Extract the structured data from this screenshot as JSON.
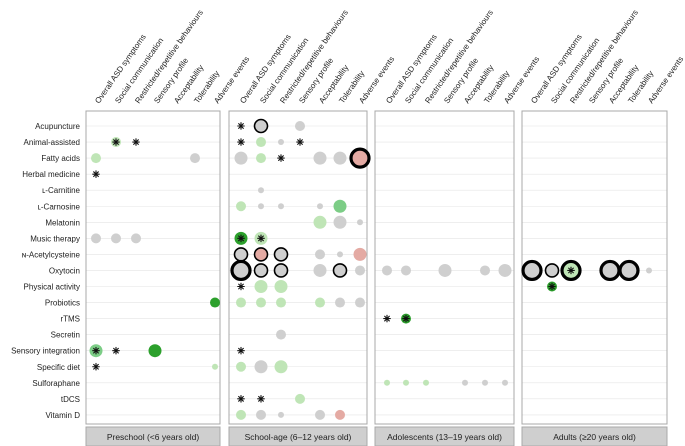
{
  "chart_data": {
    "type": "dot-matrix",
    "rows": [
      "Acupuncture",
      "Animal-assisted",
      "Fatty acids",
      "Herbal medicine",
      "ʟ-Carnitine",
      "ʟ-Carnosine",
      "Melatonin",
      "Music therapy",
      "ɴ-Acetylcysteine",
      "Oxytocin",
      "Physical activity",
      "Probiotics",
      "rTMS",
      "Secretin",
      "Sensory integration",
      "Specific diet",
      "Sulforaphane",
      "tDCS",
      "Vitamin D"
    ],
    "columns": [
      "Overall ASD symptoms",
      "Social communication",
      "Restricted/repetitive behaviours",
      "Sensory profile",
      "Acceptability",
      "Tolerability",
      "Adverse events"
    ],
    "panels": [
      {
        "title": "Preschool (<6 years old)",
        "dots": [
          {
            "row": 1,
            "col": 1,
            "size": 2,
            "color": "lightgreen",
            "star": true
          },
          {
            "row": 1,
            "col": 2,
            "size": 1,
            "color": "none",
            "star": true
          },
          {
            "row": 2,
            "col": 0,
            "size": 2,
            "color": "lightgreen"
          },
          {
            "row": 2,
            "col": 5,
            "size": 2,
            "color": "grey"
          },
          {
            "row": 3,
            "col": 0,
            "size": 1,
            "color": "none",
            "star": true
          },
          {
            "row": 7,
            "col": 0,
            "size": 2,
            "color": "grey"
          },
          {
            "row": 7,
            "col": 1,
            "size": 2,
            "color": "grey"
          },
          {
            "row": 7,
            "col": 2,
            "size": 2,
            "color": "grey"
          },
          {
            "row": 11,
            "col": 6,
            "size": 2,
            "color": "green"
          },
          {
            "row": 14,
            "col": 0,
            "size": 3,
            "color": "midgreen",
            "star": true
          },
          {
            "row": 14,
            "col": 1,
            "size": 1,
            "color": "none",
            "star": true
          },
          {
            "row": 14,
            "col": 3,
            "size": 3,
            "color": "green"
          },
          {
            "row": 15,
            "col": 0,
            "size": 1,
            "color": "none",
            "star": true
          },
          {
            "row": 15,
            "col": 6,
            "size": 1,
            "color": "lightgreen"
          }
        ]
      },
      {
        "title": "School-age (6–12 years old)",
        "dots": [
          {
            "row": 0,
            "col": 0,
            "size": 1,
            "color": "none",
            "star": true
          },
          {
            "row": 0,
            "col": 1,
            "size": 3,
            "color": "grey",
            "ring": true
          },
          {
            "row": 0,
            "col": 3,
            "size": 2,
            "color": "grey"
          },
          {
            "row": 1,
            "col": 0,
            "size": 1,
            "color": "none",
            "star": true
          },
          {
            "row": 1,
            "col": 1,
            "size": 2,
            "color": "lightgreen"
          },
          {
            "row": 1,
            "col": 2,
            "size": 1,
            "color": "grey"
          },
          {
            "row": 1,
            "col": 3,
            "size": 1,
            "color": "none",
            "star": true
          },
          {
            "row": 2,
            "col": 0,
            "size": 3,
            "color": "grey"
          },
          {
            "row": 2,
            "col": 1,
            "size": 2,
            "color": "lightgreen"
          },
          {
            "row": 2,
            "col": 2,
            "size": 1,
            "color": "none",
            "star": true
          },
          {
            "row": 2,
            "col": 4,
            "size": 3,
            "color": "grey"
          },
          {
            "row": 2,
            "col": 5,
            "size": 3,
            "color": "grey"
          },
          {
            "row": 2,
            "col": 6,
            "size": 4,
            "color": "pink",
            "ring": true
          },
          {
            "row": 4,
            "col": 1,
            "size": 1,
            "color": "grey"
          },
          {
            "row": 5,
            "col": 0,
            "size": 2,
            "color": "lightgreen"
          },
          {
            "row": 5,
            "col": 1,
            "size": 1,
            "color": "grey"
          },
          {
            "row": 5,
            "col": 2,
            "size": 1,
            "color": "grey"
          },
          {
            "row": 5,
            "col": 4,
            "size": 1,
            "color": "grey"
          },
          {
            "row": 5,
            "col": 5,
            "size": 3,
            "color": "midgreen"
          },
          {
            "row": 6,
            "col": 4,
            "size": 3,
            "color": "lightgreen"
          },
          {
            "row": 6,
            "col": 5,
            "size": 3,
            "color": "grey"
          },
          {
            "row": 6,
            "col": 6,
            "size": 1,
            "color": "grey"
          },
          {
            "row": 7,
            "col": 0,
            "size": 3,
            "color": "green",
            "star": true
          },
          {
            "row": 7,
            "col": 1,
            "size": 3,
            "color": "lightgreen",
            "star": true
          },
          {
            "row": 8,
            "col": 0,
            "size": 3,
            "color": "grey",
            "ring": true
          },
          {
            "row": 8,
            "col": 1,
            "size": 3,
            "color": "pink",
            "ring": true
          },
          {
            "row": 8,
            "col": 2,
            "size": 3,
            "color": "grey",
            "ring": true
          },
          {
            "row": 8,
            "col": 4,
            "size": 2,
            "color": "grey"
          },
          {
            "row": 8,
            "col": 5,
            "size": 1,
            "color": "grey"
          },
          {
            "row": 8,
            "col": 6,
            "size": 3,
            "color": "pink"
          },
          {
            "row": 9,
            "col": 0,
            "size": 4,
            "color": "grey",
            "ring": true
          },
          {
            "row": 9,
            "col": 1,
            "size": 3,
            "color": "grey",
            "ring": true
          },
          {
            "row": 9,
            "col": 2,
            "size": 3,
            "color": "grey",
            "ring": true
          },
          {
            "row": 9,
            "col": 4,
            "size": 3,
            "color": "grey"
          },
          {
            "row": 9,
            "col": 5,
            "size": 3,
            "color": "grey",
            "ring": true
          },
          {
            "row": 9,
            "col": 6,
            "size": 2,
            "color": "grey"
          },
          {
            "row": 10,
            "col": 0,
            "size": 1,
            "color": "none",
            "star": true
          },
          {
            "row": 10,
            "col": 1,
            "size": 3,
            "color": "lightgreen"
          },
          {
            "row": 10,
            "col": 2,
            "size": 3,
            "color": "lightgreen"
          },
          {
            "row": 11,
            "col": 0,
            "size": 2,
            "color": "lightgreen"
          },
          {
            "row": 11,
            "col": 1,
            "size": 2,
            "color": "lightgreen"
          },
          {
            "row": 11,
            "col": 2,
            "size": 2,
            "color": "lightgreen"
          },
          {
            "row": 11,
            "col": 4,
            "size": 2,
            "color": "lightgreen"
          },
          {
            "row": 11,
            "col": 5,
            "size": 2,
            "color": "grey"
          },
          {
            "row": 11,
            "col": 6,
            "size": 2,
            "color": "grey"
          },
          {
            "row": 13,
            "col": 2,
            "size": 2,
            "color": "grey"
          },
          {
            "row": 14,
            "col": 0,
            "size": 1,
            "color": "none",
            "star": true
          },
          {
            "row": 15,
            "col": 0,
            "size": 2,
            "color": "lightgreen"
          },
          {
            "row": 15,
            "col": 1,
            "size": 3,
            "color": "grey"
          },
          {
            "row": 15,
            "col": 2,
            "size": 3,
            "color": "lightgreen"
          },
          {
            "row": 17,
            "col": 0,
            "size": 1,
            "color": "none",
            "star": true
          },
          {
            "row": 17,
            "col": 1,
            "size": 1,
            "color": "none",
            "star": true
          },
          {
            "row": 17,
            "col": 3,
            "size": 2,
            "color": "lightgreen"
          },
          {
            "row": 18,
            "col": 0,
            "size": 2,
            "color": "lightgreen"
          },
          {
            "row": 18,
            "col": 1,
            "size": 2,
            "color": "grey"
          },
          {
            "row": 18,
            "col": 2,
            "size": 1,
            "color": "grey"
          },
          {
            "row": 18,
            "col": 4,
            "size": 2,
            "color": "grey"
          },
          {
            "row": 18,
            "col": 5,
            "size": 2,
            "color": "pink"
          }
        ]
      },
      {
        "title": "Adolescents (13–19 years old)",
        "dots": [
          {
            "row": 9,
            "col": 0,
            "size": 2,
            "color": "grey"
          },
          {
            "row": 9,
            "col": 1,
            "size": 2,
            "color": "grey"
          },
          {
            "row": 9,
            "col": 3,
            "size": 3,
            "color": "grey"
          },
          {
            "row": 9,
            "col": 5,
            "size": 2,
            "color": "grey"
          },
          {
            "row": 9,
            "col": 6,
            "size": 3,
            "color": "grey"
          },
          {
            "row": 12,
            "col": 0,
            "size": 1,
            "color": "none",
            "star": true
          },
          {
            "row": 12,
            "col": 1,
            "size": 2,
            "color": "green",
            "star": true
          },
          {
            "row": 16,
            "col": 0,
            "size": 1,
            "color": "lightgreen"
          },
          {
            "row": 16,
            "col": 1,
            "size": 1,
            "color": "lightgreen"
          },
          {
            "row": 16,
            "col": 2,
            "size": 1,
            "color": "lightgreen"
          },
          {
            "row": 16,
            "col": 4,
            "size": 1,
            "color": "grey"
          },
          {
            "row": 16,
            "col": 5,
            "size": 1,
            "color": "grey"
          },
          {
            "row": 16,
            "col": 6,
            "size": 1,
            "color": "grey"
          }
        ]
      },
      {
        "title": "Adults (≥20 years old)",
        "dots": [
          {
            "row": 9,
            "col": 0,
            "size": 4,
            "color": "grey",
            "ring": true
          },
          {
            "row": 9,
            "col": 1,
            "size": 3,
            "color": "grey",
            "ring": true
          },
          {
            "row": 9,
            "col": 2,
            "size": 4,
            "color": "lightgreen",
            "ring": true,
            "star": true
          },
          {
            "row": 9,
            "col": 4,
            "size": 4,
            "color": "grey",
            "ring": true
          },
          {
            "row": 9,
            "col": 5,
            "size": 4,
            "color": "grey",
            "ring": true
          },
          {
            "row": 9,
            "col": 6,
            "size": 1,
            "color": "grey"
          },
          {
            "row": 10,
            "col": 1,
            "size": 2,
            "color": "green",
            "star": true
          }
        ]
      }
    ],
    "colors": {
      "grey": "#cfcfcf",
      "lightgreen": "#bfe5b6",
      "midgreen": "#7ccd86",
      "green": "#2ca02c",
      "pink": "#e4aaa3",
      "frame": "#a8a8a8",
      "title_bg": "#cfcfcf",
      "grid": "#e4e4e4"
    }
  }
}
